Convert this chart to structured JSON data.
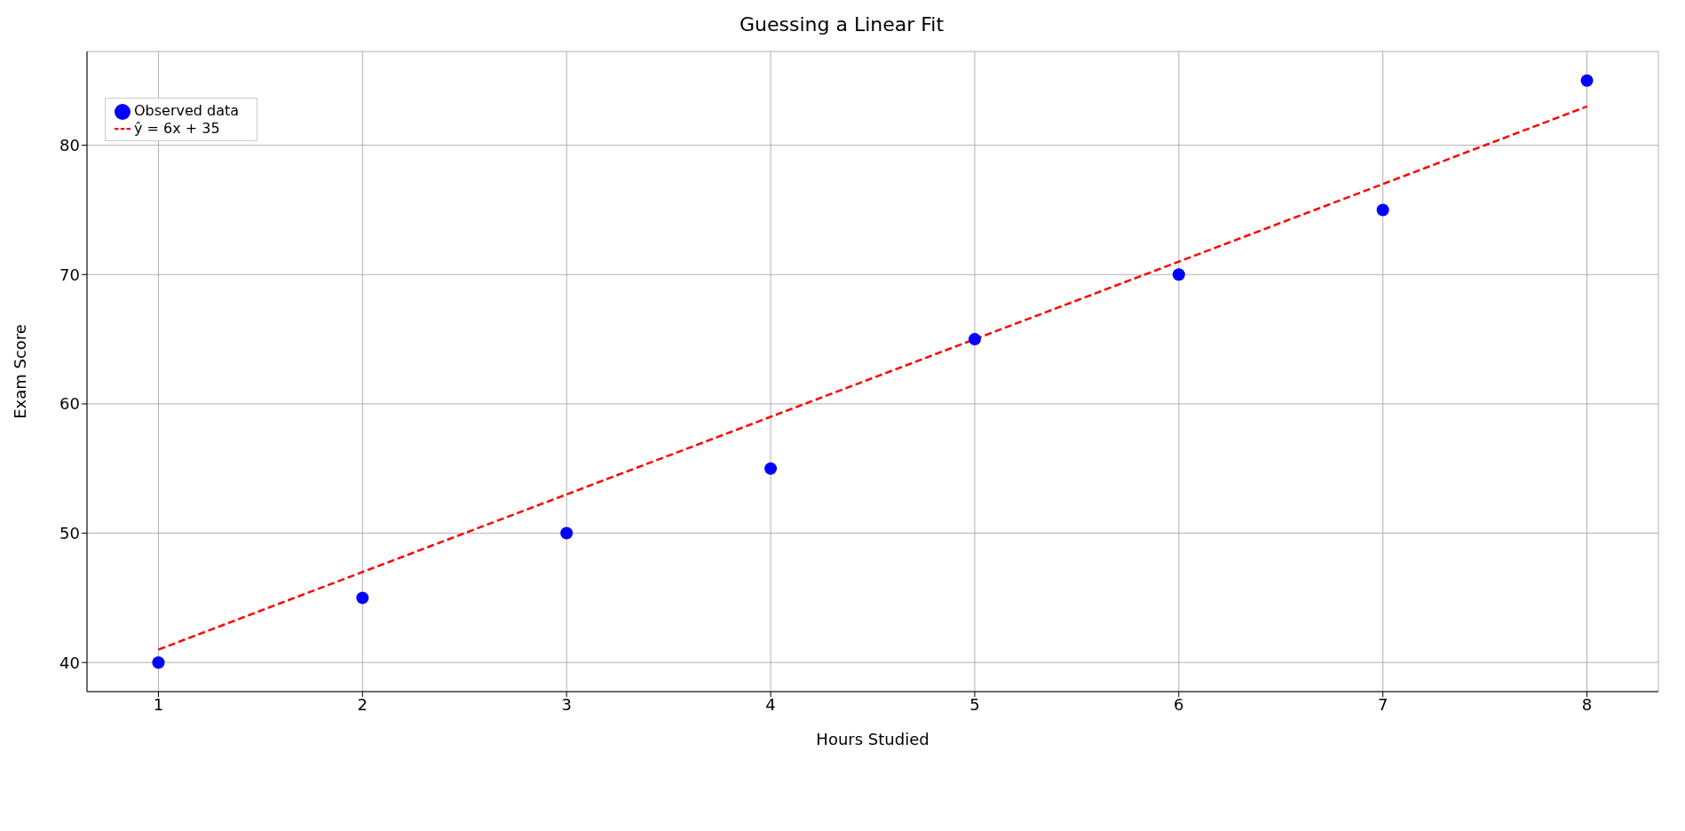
{
  "chart_data": {
    "type": "scatter",
    "title": "Guessing a Linear Fit",
    "xlabel": "Hours Studied",
    "ylabel": "Exam Score",
    "xlim": [
      0.65,
      8.35
    ],
    "ylim": [
      37.75,
      87.25
    ],
    "xticks": [
      1,
      2,
      3,
      4,
      5,
      6,
      7,
      8
    ],
    "yticks": [
      40,
      50,
      60,
      70,
      80
    ],
    "grid": true,
    "legend": "top left",
    "series": [
      {
        "name": "Observed data",
        "marker": "circle",
        "color": "#0000ff",
        "x": [
          1,
          2,
          3,
          4,
          5,
          6,
          7,
          8
        ],
        "values": [
          40,
          45,
          50,
          55,
          65,
          70,
          75,
          85
        ]
      },
      {
        "name": "ŷ = 6x + 35",
        "type": "line",
        "color": "#ff0000",
        "line_style": "dashed",
        "x": [
          1,
          8
        ],
        "values": [
          41,
          83
        ]
      }
    ]
  }
}
